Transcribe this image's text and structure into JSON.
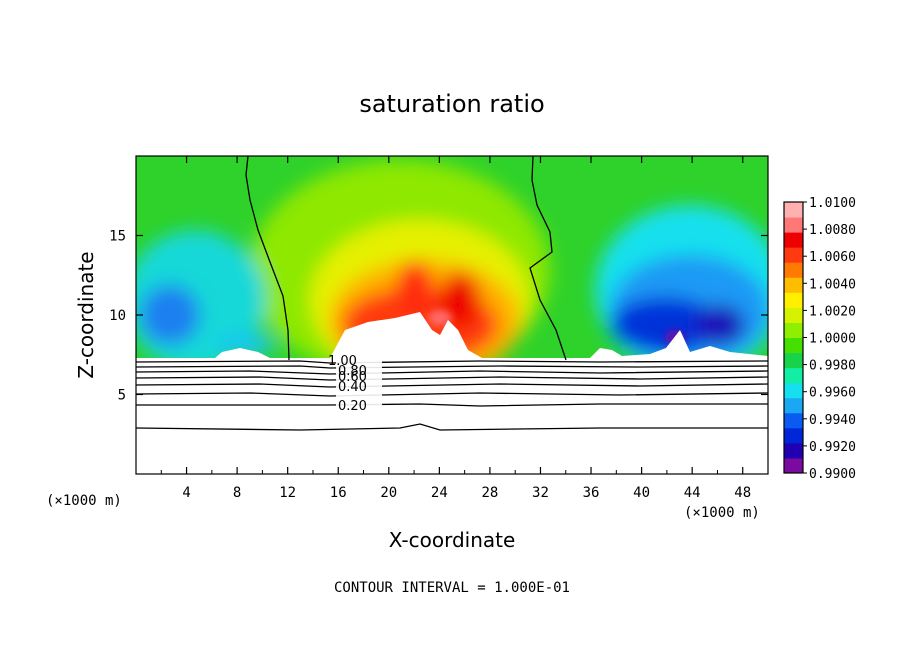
{
  "chart_data": {
    "type": "heatmap",
    "title": "saturation ratio",
    "xlabel": "X-coordinate",
    "ylabel": "Z-coordinate",
    "x_unit": "(×1000 m)",
    "footer": "CONTOUR INTERVAL = 1.000E-01",
    "xlim": [
      0,
      50
    ],
    "ylim": [
      0,
      20
    ],
    "xticks": [
      "4",
      "8",
      "12",
      "16",
      "20",
      "24",
      "28",
      "32",
      "36",
      "40",
      "44",
      "48"
    ],
    "yticks": [
      "5",
      "10",
      "15"
    ],
    "colorbar": {
      "range": [
        0.99,
        1.01
      ],
      "ticks": [
        "1.0100",
        "1.0080",
        "1.0060",
        "1.0040",
        "1.0020",
        "1.0000",
        "0.9980",
        "0.9960",
        "0.9940",
        "0.9920",
        "0.9900"
      ],
      "colors": [
        "#7a0b9e",
        "#2000b0",
        "#0026d9",
        "#0a5cf0",
        "#1aa8f5",
        "#16e0ee",
        "#12eea4",
        "#18d24a",
        "#46e000",
        "#8ef000",
        "#d6f200",
        "#fff000",
        "#ffbd00",
        "#ff7a00",
        "#ff3a10",
        "#ee0000",
        "#ff7878",
        "#ffb0b0"
      ]
    },
    "contour_labels": [
      "0.20",
      "0.40",
      "0.60",
      "0.80",
      "1.00"
    ],
    "cloud_region": {
      "x_range": [
        0,
        50
      ],
      "z_range": [
        7.2,
        20
      ]
    },
    "supersaturated_core": {
      "x_range": [
        14,
        31
      ],
      "z_range": [
        7.2,
        14.5
      ],
      "peak": 1.0075
    },
    "subsaturated_zones": [
      {
        "x_range": [
          0,
          10
        ],
        "z_range": [
          7.2,
          13
        ],
        "min": 0.9935
      },
      {
        "x_range": [
          35,
          50
        ],
        "z_range": [
          7.2,
          14
        ],
        "min": 0.9905
      }
    ]
  }
}
